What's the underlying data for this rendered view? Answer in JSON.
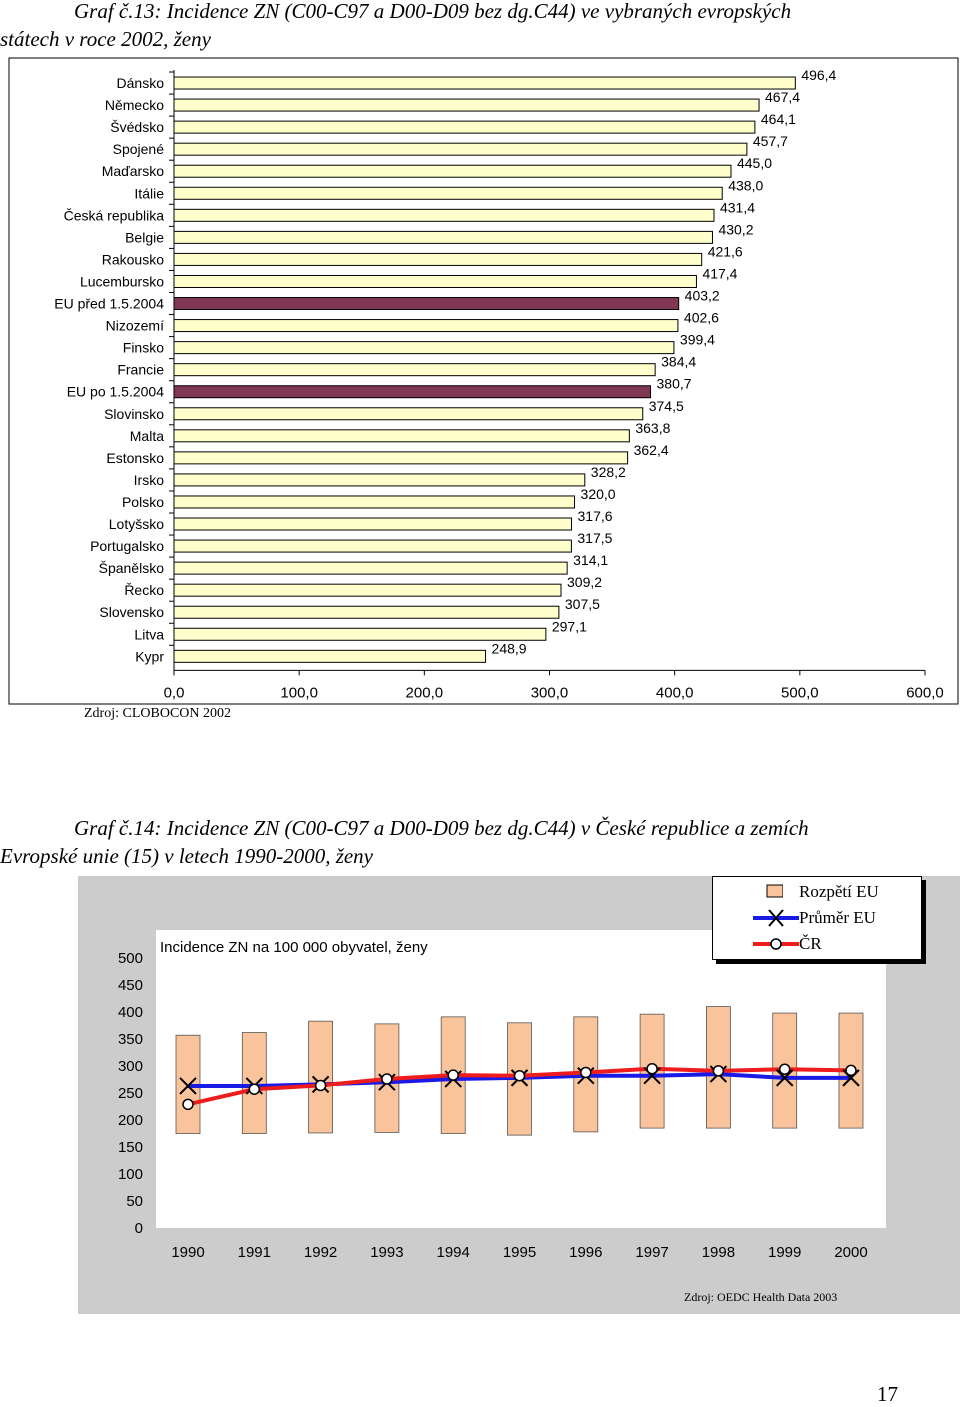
{
  "chart13": {
    "caption_line1": "Graf č.13:   Incidence ZN (C00-C97 a D00-D09 bez dg.C44) ve vybraných evropských",
    "caption_line2": "státech v roce 2002, ženy",
    "source": "Zdroj: CLOBOCON 2002"
  },
  "chart14": {
    "caption_line1": "Graf č.14: Incidence ZN (C00-C97 a D00-D09 bez dg.C44) v České republice a zemích",
    "caption_line2": "Evropské unie (15) v letech 1990-2000, ženy",
    "ylabel": "Incidence ZN na 100 000 obyvatel, ženy",
    "source": "Zdroj: OEDC Health Data 2003",
    "legend": [
      "Rozpětí EU",
      "Průměr EU",
      "ČR"
    ]
  },
  "page_number": "17",
  "colors": {
    "bar_fill": "#ffffcc",
    "bar_eu_fill": "#7f3753",
    "range_fill": "#f9c49b",
    "eu_avg_line": "#1a1ae6",
    "cr_line": "#ee1c1c",
    "plot_bg": "#cccccc"
  },
  "chart_data": [
    {
      "type": "bar",
      "orientation": "horizontal",
      "categories": [
        "Dánsko",
        "Německo",
        "Švédsko",
        "Spojené",
        "Maďarsko",
        "Itálie",
        "Česká republika",
        "Belgie",
        "Rakousko",
        "Lucembursko",
        "EU před 1.5.2004",
        "Nizozemí",
        "Finsko",
        "Francie",
        "EU po 1.5.2004",
        "Slovinsko",
        "Malta",
        "Estonsko",
        "Irsko",
        "Polsko",
        "Lotyšsko",
        "Portugalsko",
        "Španělsko",
        "Řecko",
        "Slovensko",
        "Litva",
        "Kypr"
      ],
      "values": [
        496.4,
        467.4,
        464.1,
        457.7,
        445.0,
        438.0,
        431.4,
        430.2,
        421.6,
        417.4,
        403.2,
        402.6,
        399.4,
        384.4,
        380.7,
        374.5,
        363.8,
        362.4,
        328.2,
        320.0,
        317.6,
        317.5,
        314.1,
        309.2,
        307.5,
        297.1,
        248.9
      ],
      "value_labels": [
        "496,4",
        "467,4",
        "464,1",
        "457,7",
        "445,0",
        "438,0",
        "431,4",
        "430,2",
        "421,6",
        "417,4",
        "403,2",
        "402,6",
        "399,4",
        "384,4",
        "380,7",
        "374,5",
        "363,8",
        "362,4",
        "328,2",
        "320,0",
        "317,6",
        "317,5",
        "314,1",
        "309,2",
        "307,5",
        "297,1",
        "248,9"
      ],
      "highlighted": [
        "EU před 1.5.2004",
        "EU po 1.5.2004"
      ],
      "xlim": [
        0,
        600
      ],
      "xticks": [
        0,
        100,
        200,
        300,
        400,
        500,
        600
      ],
      "xtick_labels": [
        "0,0",
        "100,0",
        "200,0",
        "300,0",
        "400,0",
        "500,0",
        "600,0"
      ]
    },
    {
      "type": "line",
      "categories": [
        "1990",
        "1991",
        "1992",
        "1993",
        "1994",
        "1995",
        "1996",
        "1997",
        "1998",
        "1999",
        "2000"
      ],
      "ylim": [
        0,
        500
      ],
      "yticks": [
        0,
        50,
        100,
        150,
        200,
        250,
        300,
        350,
        400,
        450,
        500
      ],
      "series": [
        {
          "name": "Rozpětí EU",
          "type": "range",
          "low": [
            175,
            175,
            176,
            177,
            175,
            172,
            178,
            185,
            185,
            185,
            185
          ],
          "high": [
            357,
            362,
            383,
            378,
            391,
            380,
            391,
            396,
            410,
            398,
            398
          ]
        },
        {
          "name": "Průměr EU",
          "values": [
            263,
            263,
            266,
            270,
            276,
            278,
            282,
            282,
            285,
            278,
            278
          ]
        },
        {
          "name": "ČR",
          "values": [
            229,
            257,
            264,
            276,
            283,
            282,
            288,
            295,
            291,
            294,
            292
          ]
        }
      ]
    }
  ]
}
